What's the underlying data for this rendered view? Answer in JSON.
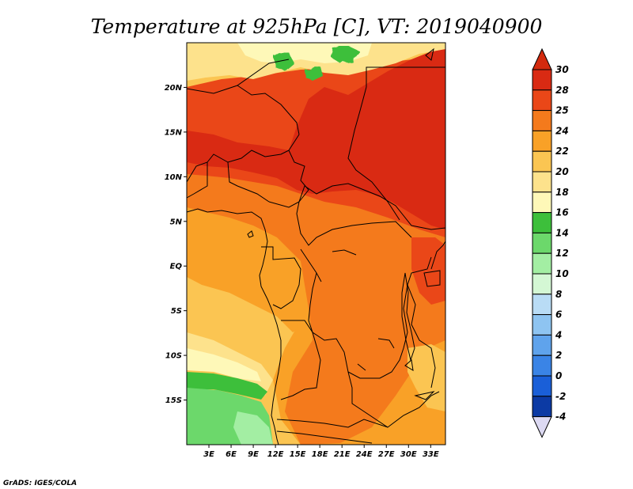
{
  "title": "Temperature at 925hPa [C], VT: 2019040900",
  "credit": "GrADS: IGES/COLA",
  "map": {
    "lon_range": [
      0,
      35
    ],
    "lat_range": [
      -20,
      25
    ],
    "lat_ticks": [
      {
        "value": 20,
        "label": "20N"
      },
      {
        "value": 15,
        "label": "15N"
      },
      {
        "value": 10,
        "label": "10N"
      },
      {
        "value": 5,
        "label": "5N"
      },
      {
        "value": 0,
        "label": "EQ"
      },
      {
        "value": -5,
        "label": "5S"
      },
      {
        "value": -10,
        "label": "10S"
      },
      {
        "value": -15,
        "label": "15S"
      }
    ],
    "lon_ticks": [
      {
        "value": 3,
        "label": "3E"
      },
      {
        "value": 6,
        "label": "6E"
      },
      {
        "value": 9,
        "label": "9E"
      },
      {
        "value": 12,
        "label": "12E"
      },
      {
        "value": 15,
        "label": "15E"
      },
      {
        "value": 18,
        "label": "18E"
      },
      {
        "value": 21,
        "label": "21E"
      },
      {
        "value": 24,
        "label": "24E"
      },
      {
        "value": 27,
        "label": "27E"
      },
      {
        "value": 30,
        "label": "30E"
      },
      {
        "value": 33,
        "label": "33E"
      }
    ]
  },
  "colorbar": {
    "levels": [
      "30",
      "28",
      "25",
      "24",
      "22",
      "20",
      "18",
      "16",
      "14",
      "12",
      "10",
      "8",
      "6",
      "4",
      "2",
      "0",
      "-2",
      "-4"
    ],
    "colors": [
      "#d92a13",
      "#ea4718",
      "#f47a1c",
      "#f9a127",
      "#fbc552",
      "#fde28c",
      "#fef8b8",
      "#3dbf3b",
      "#6cd86b",
      "#a3eea3",
      "#d4f7d4",
      "#b9dcf5",
      "#8ec4f1",
      "#5fa3ec",
      "#3a84e6",
      "#1a5fd8",
      "#0c3aa4",
      "#070d6d"
    ],
    "top_color": "#d32a0e",
    "bottom_color": "#dcd9f2"
  },
  "field": {
    "regions": [
      {
        "level": "22",
        "color": "#fbc552"
      },
      {
        "level": "24",
        "color": "#f9a127"
      },
      {
        "level": "25",
        "color": "#f47a1c"
      },
      {
        "level": "28",
        "color": "#ea4718"
      },
      {
        "level": "30",
        "color": "#d92a13"
      },
      {
        "level": "20",
        "color": "#fde28c"
      },
      {
        "level": "18",
        "color": "#fef8b8"
      },
      {
        "level": "16",
        "color": "#3dbf3b"
      },
      {
        "level": "14",
        "color": "#6cd86b"
      },
      {
        "level": "12",
        "color": "#a3eea3"
      }
    ]
  }
}
